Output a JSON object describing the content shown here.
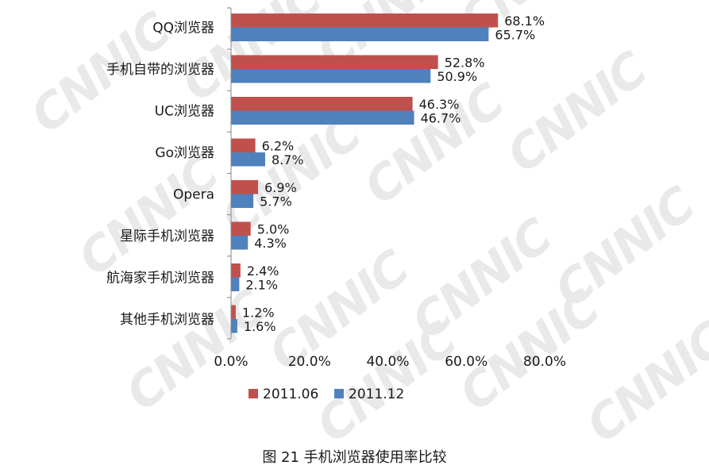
{
  "watermark_text": "CNNIC",
  "caption": "图 21 手机浏览器使用率比较",
  "colors": {
    "series_2011_06": "#c0504d",
    "series_2011_12": "#4f81bd",
    "axis": "#868686"
  },
  "chart_data": {
    "type": "bar",
    "orientation": "horizontal",
    "categories": [
      "QQ浏览器",
      "手机自带的浏览器",
      "UC浏览器",
      "Go浏览器",
      "Opera",
      "星际手机浏览器",
      "航海家手机浏览器",
      "其他手机浏览器"
    ],
    "series": [
      {
        "name": "2011.06",
        "values": [
          68.1,
          52.8,
          46.3,
          6.2,
          6.9,
          5.0,
          2.4,
          1.2
        ],
        "labels": [
          "68.1%",
          "52.8%",
          "46.3%",
          "6.2%",
          "6.9%",
          "5.0%",
          "2.4%",
          "1.2%"
        ]
      },
      {
        "name": "2011.12",
        "values": [
          65.7,
          50.9,
          46.7,
          8.7,
          5.7,
          4.3,
          2.1,
          1.6
        ],
        "labels": [
          "65.7%",
          "50.9%",
          "46.7%",
          "8.7%",
          "5.7%",
          "4.3%",
          "2.1%",
          "1.6%"
        ]
      }
    ],
    "xlim": [
      0,
      80
    ],
    "x_ticks": [
      0,
      20,
      40,
      60,
      80
    ],
    "x_tick_labels": [
      "0.0%",
      "20.0%",
      "40.0%",
      "60.0%",
      "80.0%"
    ],
    "grid": false,
    "legend_position": "bottom",
    "title": "",
    "xlabel": "",
    "ylabel": ""
  }
}
